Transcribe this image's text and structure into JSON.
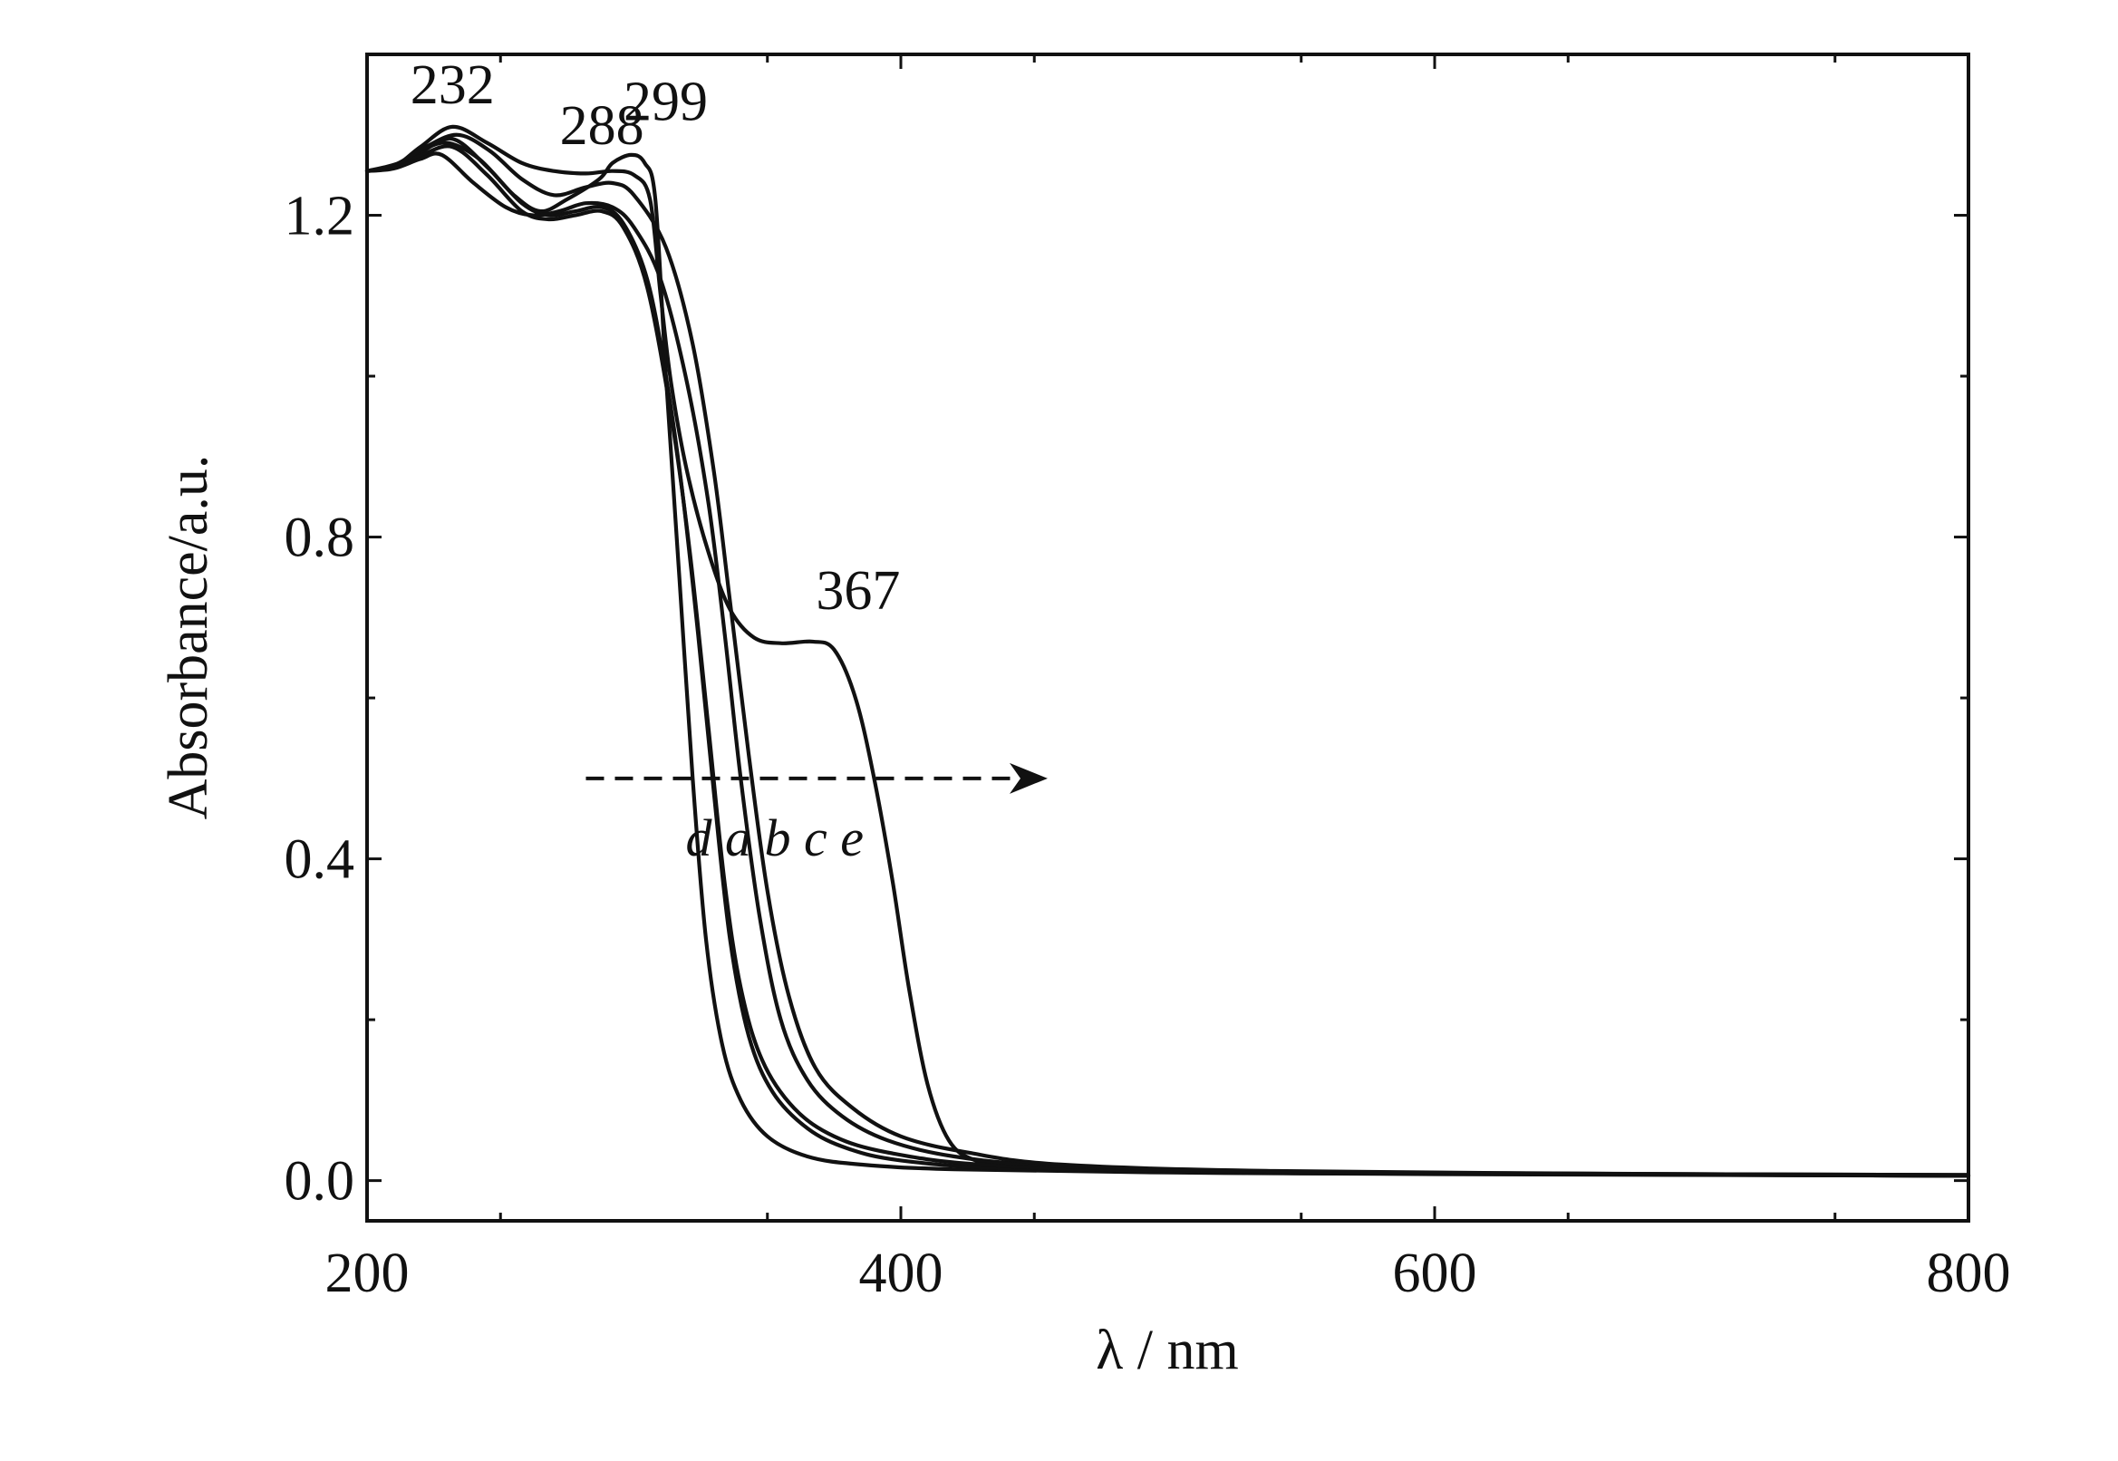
{
  "chart_data": {
    "type": "line",
    "xlabel": "λ / nm",
    "ylabel": "Absorbance/a.u.",
    "xlim": [
      200,
      800
    ],
    "ylim": [
      -0.05,
      1.4
    ],
    "x_ticks": [
      "200",
      "400",
      "600",
      "800"
    ],
    "y_ticks": [
      "0.0",
      "0.4",
      "0.8",
      "1.2"
    ],
    "grid": false,
    "line_color": "#111111",
    "annotations": {
      "peaks": [
        {
          "text": "232",
          "x": 232,
          "y": 1.31
        },
        {
          "text": "288",
          "x": 288,
          "y": 1.25
        },
        {
          "text": "299",
          "x": 299,
          "y": 1.28
        },
        {
          "text": "367",
          "x": 367,
          "y": 0.67
        }
      ],
      "order_text": "d a b c e",
      "arrow": {
        "from": [
          282,
          0.5
        ],
        "to": [
          455,
          0.5
        ]
      }
    },
    "series": [
      {
        "values": [
          [
            200,
            1.255
          ],
          [
            210,
            1.26
          ],
          [
            220,
            1.285
          ],
          [
            232,
            1.31
          ],
          [
            245,
            1.29
          ],
          [
            258,
            1.265
          ],
          [
            270,
            1.255
          ],
          [
            282,
            1.252
          ],
          [
            292,
            1.255
          ],
          [
            300,
            1.25
          ],
          [
            306,
            1.22
          ],
          [
            310,
            1.1
          ],
          [
            314,
            0.99
          ],
          [
            320,
            0.88
          ],
          [
            328,
            0.78
          ],
          [
            336,
            0.71
          ],
          [
            345,
            0.675
          ],
          [
            355,
            0.668
          ],
          [
            367,
            0.67
          ],
          [
            375,
            0.66
          ],
          [
            383,
            0.6
          ],
          [
            390,
            0.5
          ],
          [
            397,
            0.37
          ],
          [
            403,
            0.24
          ],
          [
            410,
            0.12
          ],
          [
            418,
            0.05
          ],
          [
            428,
            0.025
          ],
          [
            445,
            0.016
          ],
          [
            480,
            0.012
          ],
          [
            550,
            0.009
          ],
          [
            650,
            0.008
          ],
          [
            800,
            0.006
          ]
        ]
      },
      {
        "values": [
          [
            200,
            1.255
          ],
          [
            210,
            1.262
          ],
          [
            220,
            1.28
          ],
          [
            230,
            1.29
          ],
          [
            242,
            1.27
          ],
          [
            255,
            1.225
          ],
          [
            265,
            1.205
          ],
          [
            275,
            1.22
          ],
          [
            287,
            1.245
          ],
          [
            292,
            1.265
          ],
          [
            299,
            1.275
          ],
          [
            304,
            1.265
          ],
          [
            308,
            1.22
          ],
          [
            312,
            1.0
          ],
          [
            317,
            0.75
          ],
          [
            322,
            0.5
          ],
          [
            327,
            0.3
          ],
          [
            333,
            0.17
          ],
          [
            340,
            0.1
          ],
          [
            350,
            0.055
          ],
          [
            365,
            0.03
          ],
          [
            385,
            0.02
          ],
          [
            420,
            0.014
          ],
          [
            500,
            0.01
          ],
          [
            600,
            0.008
          ],
          [
            800,
            0.006
          ]
        ]
      },
      {
        "values": [
          [
            200,
            1.255
          ],
          [
            210,
            1.26
          ],
          [
            220,
            1.278
          ],
          [
            232,
            1.295
          ],
          [
            245,
            1.26
          ],
          [
            258,
            1.215
          ],
          [
            268,
            1.2
          ],
          [
            278,
            1.205
          ],
          [
            288,
            1.21
          ],
          [
            296,
            1.19
          ],
          [
            305,
            1.12
          ],
          [
            312,
            1.0
          ],
          [
            318,
            0.86
          ],
          [
            324,
            0.68
          ],
          [
            330,
            0.48
          ],
          [
            336,
            0.3
          ],
          [
            343,
            0.18
          ],
          [
            352,
            0.11
          ],
          [
            365,
            0.065
          ],
          [
            380,
            0.04
          ],
          [
            400,
            0.025
          ],
          [
            440,
            0.015
          ],
          [
            520,
            0.01
          ],
          [
            650,
            0.008
          ],
          [
            800,
            0.006
          ]
        ]
      },
      {
        "values": [
          [
            200,
            1.255
          ],
          [
            210,
            1.26
          ],
          [
            220,
            1.274
          ],
          [
            232,
            1.285
          ],
          [
            245,
            1.25
          ],
          [
            258,
            1.205
          ],
          [
            268,
            1.195
          ],
          [
            278,
            1.2
          ],
          [
            288,
            1.205
          ],
          [
            296,
            1.185
          ],
          [
            305,
            1.11
          ],
          [
            314,
            0.95
          ],
          [
            321,
            0.78
          ],
          [
            328,
            0.56
          ],
          [
            334,
            0.37
          ],
          [
            340,
            0.24
          ],
          [
            348,
            0.15
          ],
          [
            360,
            0.09
          ],
          [
            375,
            0.055
          ],
          [
            395,
            0.035
          ],
          [
            430,
            0.02
          ],
          [
            500,
            0.012
          ],
          [
            650,
            0.008
          ],
          [
            800,
            0.006
          ]
        ]
      },
      {
        "values": [
          [
            200,
            1.255
          ],
          [
            210,
            1.258
          ],
          [
            220,
            1.27
          ],
          [
            228,
            1.275
          ],
          [
            240,
            1.24
          ],
          [
            252,
            1.21
          ],
          [
            262,
            1.2
          ],
          [
            272,
            1.205
          ],
          [
            282,
            1.215
          ],
          [
            292,
            1.21
          ],
          [
            300,
            1.185
          ],
          [
            310,
            1.12
          ],
          [
            320,
            0.99
          ],
          [
            328,
            0.84
          ],
          [
            334,
            0.68
          ],
          [
            340,
            0.5
          ],
          [
            347,
            0.33
          ],
          [
            355,
            0.2
          ],
          [
            365,
            0.125
          ],
          [
            378,
            0.08
          ],
          [
            395,
            0.05
          ],
          [
            420,
            0.03
          ],
          [
            460,
            0.018
          ],
          [
            550,
            0.011
          ],
          [
            700,
            0.008
          ],
          [
            800,
            0.007
          ]
        ]
      },
      {
        "values": [
          [
            200,
            1.255
          ],
          [
            212,
            1.265
          ],
          [
            222,
            1.285
          ],
          [
            234,
            1.3
          ],
          [
            246,
            1.28
          ],
          [
            258,
            1.245
          ],
          [
            270,
            1.225
          ],
          [
            282,
            1.235
          ],
          [
            292,
            1.24
          ],
          [
            300,
            1.225
          ],
          [
            312,
            1.16
          ],
          [
            322,
            1.04
          ],
          [
            330,
            0.88
          ],
          [
            336,
            0.72
          ],
          [
            343,
            0.53
          ],
          [
            350,
            0.36
          ],
          [
            358,
            0.23
          ],
          [
            368,
            0.14
          ],
          [
            382,
            0.09
          ],
          [
            400,
            0.055
          ],
          [
            425,
            0.035
          ],
          [
            460,
            0.02
          ],
          [
            540,
            0.012
          ],
          [
            700,
            0.008
          ],
          [
            800,
            0.007
          ]
        ]
      }
    ]
  }
}
